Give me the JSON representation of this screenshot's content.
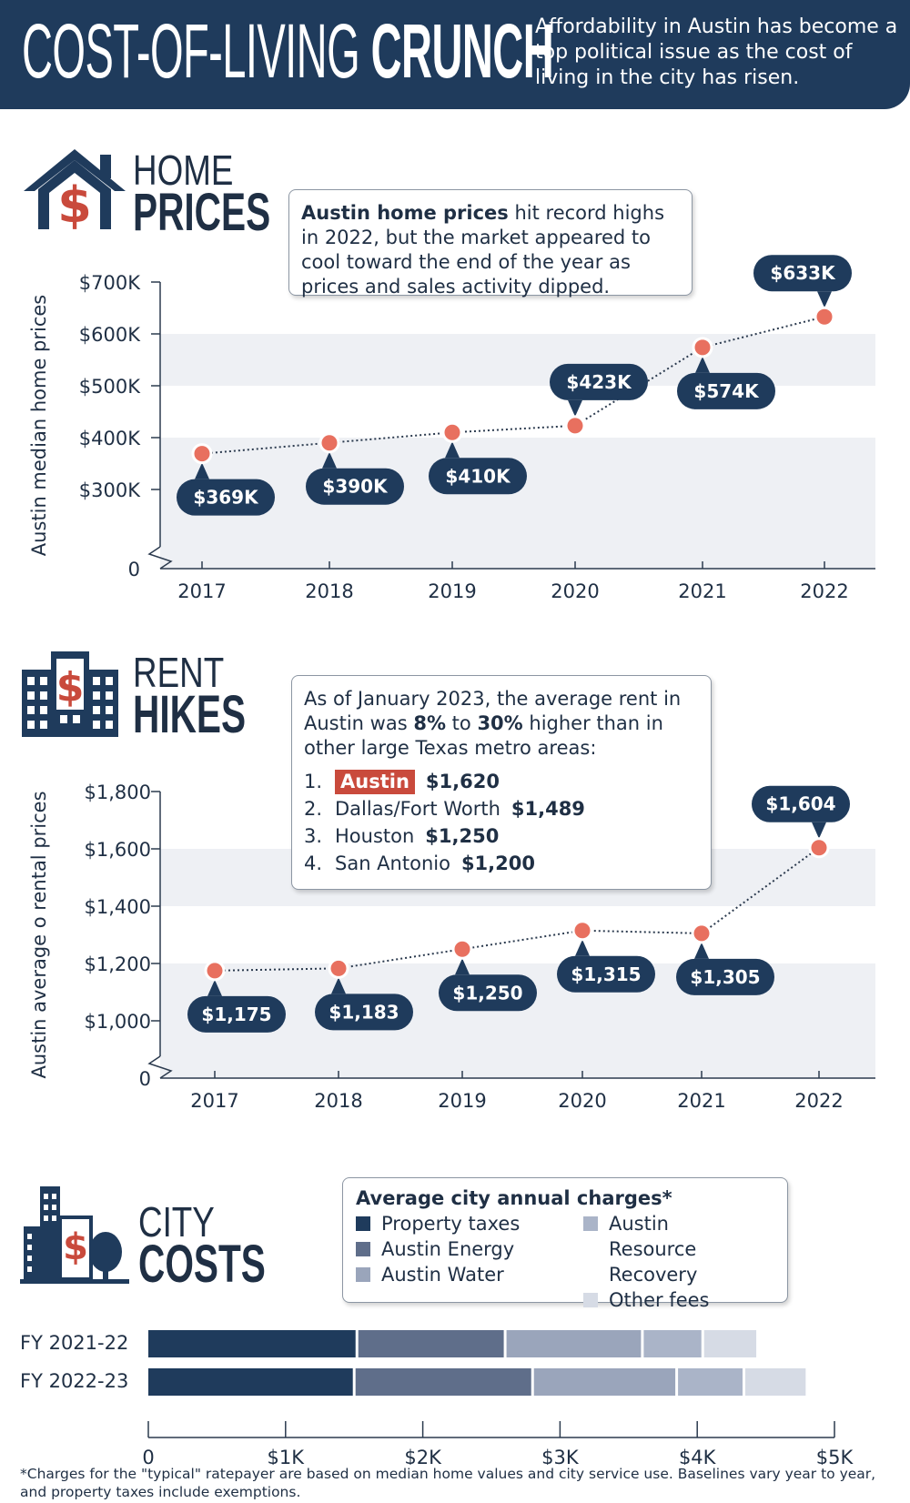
{
  "banner": {
    "title_light": "COST-OF-LIVING",
    "title_bold": "CRUNCH",
    "subtitle": "Affordability in Austin has become a top political issue as the cost of living in the city has risen."
  },
  "colors": {
    "navy": "#1f3b5c",
    "marker": "#e8705f",
    "band": "#eef0f4",
    "highlight": "#c94a3c"
  },
  "home": {
    "heading_light": "HOME",
    "heading_bold": "PRICES",
    "icon": "house-dollar-icon",
    "callout_bold": "Austin home prices",
    "callout_rest": " hit record highs in 2022, but the market appeared to cool toward the end of the year as prices and sales activity dipped."
  },
  "rent": {
    "heading_light": "RENT",
    "heading_bold": "HIKES",
    "icon": "apartment-dollar-icon",
    "callout_intro_a": "As of January 2023, the average rent in Austin was ",
    "callout_pct_low": "8%",
    "callout_to": " to ",
    "callout_pct_high": "30%",
    "callout_intro_b": " higher than in other large Texas metro areas:",
    "ranking": [
      {
        "num": "1.",
        "name": "Austin",
        "value": "$1,620",
        "highlight": true
      },
      {
        "num": "2.",
        "name": "Dallas/Fort Worth",
        "value": "$1,489",
        "highlight": false
      },
      {
        "num": "3.",
        "name": "Houston",
        "value": "$1,250",
        "highlight": false
      },
      {
        "num": "4.",
        "name": "San Antonio",
        "value": "$1,200",
        "highlight": false
      }
    ]
  },
  "city": {
    "heading_light": "CITY",
    "heading_bold": "COSTS",
    "icon": "city-dollar-icon",
    "legend_title": "Average city annual charges*",
    "footnote": "*Charges for the \"typical\" ratepayer are based on median home values and city service use. Baselines vary year to year, and property taxes include exemptions."
  },
  "chart_data": [
    {
      "type": "line",
      "ylabel": "Austin median home prices",
      "x": [
        "2017",
        "2018",
        "2019",
        "2020",
        "2021",
        "2022"
      ],
      "series": [
        {
          "values": [
            369,
            390,
            410,
            423,
            574,
            633
          ]
        }
      ],
      "data_labels": [
        "$369K",
        "$390K",
        "$410K",
        "$423K",
        "$574K",
        "$633K"
      ],
      "yticks": [
        0,
        300,
        400,
        500,
        600,
        700
      ],
      "ytick_labels": [
        "0",
        "$300K",
        "$400K",
        "$500K",
        "$600K",
        "$700K"
      ],
      "ylim": [
        200,
        700
      ],
      "axis_break": true,
      "grid": "alternating bands"
    },
    {
      "type": "line",
      "ylabel": "Austin average o rental prices",
      "x": [
        "2017",
        "2018",
        "2019",
        "2020",
        "2021",
        "2022"
      ],
      "series": [
        {
          "values": [
            1175,
            1183,
            1250,
            1315,
            1305,
            1604
          ]
        }
      ],
      "data_labels": [
        "$1,175",
        "$1,183",
        "$1,250",
        "$1,315",
        "$1,305",
        "$1,604"
      ],
      "yticks": [
        0,
        1000,
        1200,
        1400,
        1600,
        1800
      ],
      "ytick_labels": [
        "0",
        "$1,000",
        "$1,200",
        "$1,400",
        "$1,600",
        "$1,800"
      ],
      "ylim": [
        800,
        1800
      ],
      "axis_break": true,
      "grid": "alternating bands"
    },
    {
      "type": "bar",
      "orientation": "horizontal",
      "stacked": true,
      "categories": [
        "FY 2021-22",
        "FY 2022-23"
      ],
      "series": [
        {
          "name": "Property taxes",
          "color": "#1f3b5c",
          "values": [
            1530,
            1510
          ]
        },
        {
          "name": "Austin Energy",
          "color": "#5f6e8a",
          "values": [
            1080,
            1300
          ]
        },
        {
          "name": "Austin Water",
          "color": "#9aa5bb",
          "values": [
            1000,
            1050
          ]
        },
        {
          "name": "Austin Resource Recovery",
          "color": "#aab4c8",
          "values": [
            440,
            490
          ]
        },
        {
          "name": "Other fees",
          "color": "#d6dbe5",
          "values": [
            400,
            460
          ]
        }
      ],
      "xticks": [
        0,
        1000,
        2000,
        3000,
        4000,
        5000
      ],
      "xtick_labels": [
        "0",
        "$1K",
        "$2K",
        "$3K",
        "$4K",
        "$5K"
      ],
      "xlim": [
        0,
        5000
      ],
      "legend": "top-right box"
    }
  ]
}
